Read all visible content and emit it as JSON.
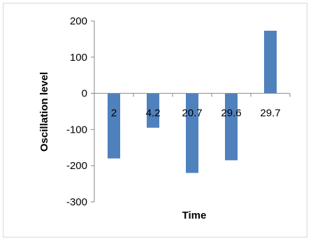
{
  "chart_data": {
    "type": "bar",
    "title": "",
    "xlabel": "Time",
    "ylabel": "Oscillation level",
    "categories": [
      "2",
      "4.2",
      "20.7",
      "29.6",
      "29.7"
    ],
    "values": [
      -180,
      -95,
      -220,
      -185,
      173
    ],
    "ylim": [
      -300,
      200
    ],
    "yticks": [
      "200",
      "100",
      "0",
      "-100",
      "-200",
      "-300"
    ],
    "grid": false,
    "legend": "none",
    "bar_color": "#4f81bd"
  }
}
